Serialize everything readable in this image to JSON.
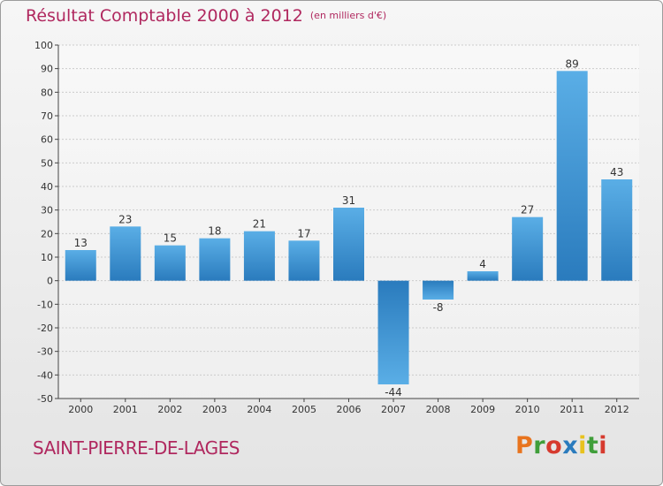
{
  "colors": {
    "title": "#b0285f",
    "bar_light": "#5aaee6",
    "bar_dark": "#2a7bbd",
    "grid": "#cccccc",
    "axis": "#444444",
    "brand": [
      "#e8741e",
      "#3f9e3a",
      "#d63a2e",
      "#2a7bbd",
      "#e8c21e",
      "#3f9e3a",
      "#d63a2e"
    ]
  },
  "chart_data": {
    "type": "bar",
    "title": "Résultat Comptable 2000 à 2012",
    "unit": "(en milliers d'€)",
    "categories": [
      "2000",
      "2001",
      "2002",
      "2003",
      "2004",
      "2005",
      "2006",
      "2007",
      "2008",
      "2009",
      "2010",
      "2011",
      "2012"
    ],
    "values": [
      13,
      23,
      15,
      18,
      21,
      17,
      31,
      -44,
      -8,
      4,
      27,
      89,
      43
    ],
    "ylim": [
      -50,
      100
    ],
    "yticks": [
      100,
      90,
      80,
      70,
      60,
      50,
      40,
      30,
      20,
      10,
      0,
      -10,
      -20,
      -30,
      -40,
      -50
    ],
    "xlabel": "",
    "ylabel": "",
    "grid": true
  },
  "footer": {
    "commune": "SAINT-PIERRE-DE-LAGES",
    "brand": "Proxiti"
  }
}
